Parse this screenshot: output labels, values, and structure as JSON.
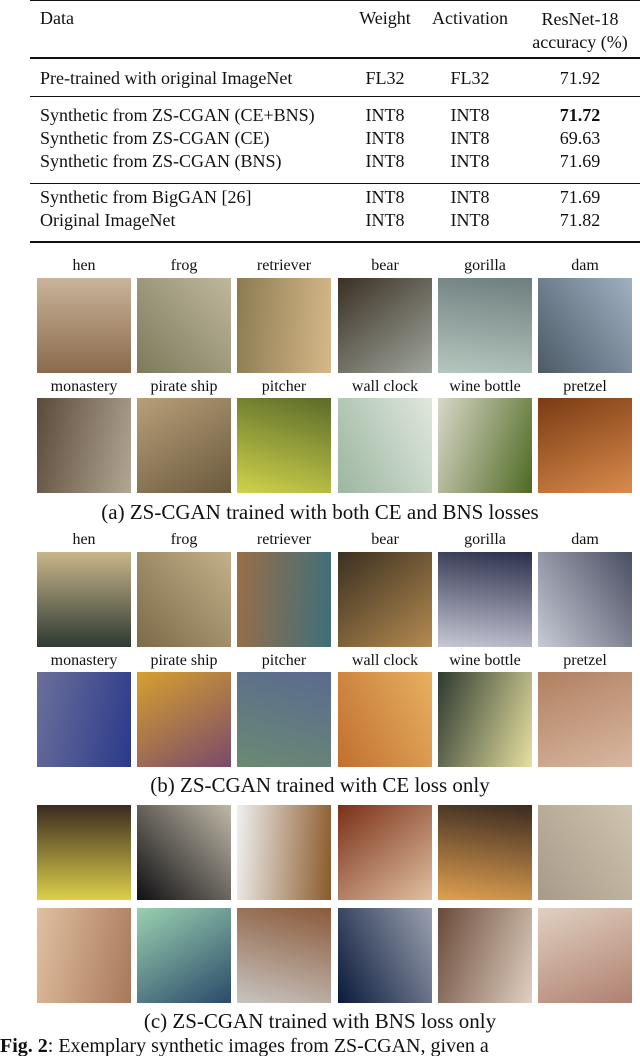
{
  "table": {
    "header": [
      "Data",
      "Weight",
      "Activation",
      "ResNet-18 accuracy (%)"
    ],
    "groups": [
      {
        "rows": [
          [
            "Pre-trained with original ImageNet",
            "FL32",
            "FL32",
            "71.92"
          ]
        ]
      },
      {
        "rows": [
          [
            "Synthetic from ZS-CGAN (CE+BNS)",
            "INT8",
            "INT8",
            "71.72"
          ],
          [
            "Synthetic from ZS-CGAN (CE)",
            "INT8",
            "INT8",
            "69.63"
          ],
          [
            "Synthetic from ZS-CGAN (BNS)",
            "INT8",
            "INT8",
            "71.69"
          ]
        ]
      },
      {
        "rows": [
          [
            "Synthetic from BigGAN [26]",
            "INT8",
            "INT8",
            "71.69"
          ],
          [
            "Original ImageNet",
            "INT8",
            "INT8",
            "71.82"
          ]
        ]
      }
    ]
  },
  "figures": [
    {
      "labels": [
        "hen",
        "frog",
        "retriever",
        "bear",
        "gorilla",
        "dam",
        "monastery",
        "pirate ship",
        "pitcher",
        "wall clock",
        "wine bottle",
        "pretzel"
      ],
      "caption": "(a) ZS-CGAN trained with both CE and BNS losses"
    },
    {
      "labels": [
        "hen",
        "frog",
        "retriever",
        "bear",
        "gorilla",
        "dam",
        "monastery",
        "pirate ship",
        "pitcher",
        "wall clock",
        "wine bottle",
        "pretzel"
      ],
      "caption": "(b) ZS-CGAN trained with CE loss only"
    },
    {
      "caption": "(c) ZS-CGAN trained with BNS loss only"
    }
  ],
  "fig_caption": {
    "label": "Fig. 2",
    "text": ": Exemplary synthetic images from ZS-CGAN, given a"
  }
}
